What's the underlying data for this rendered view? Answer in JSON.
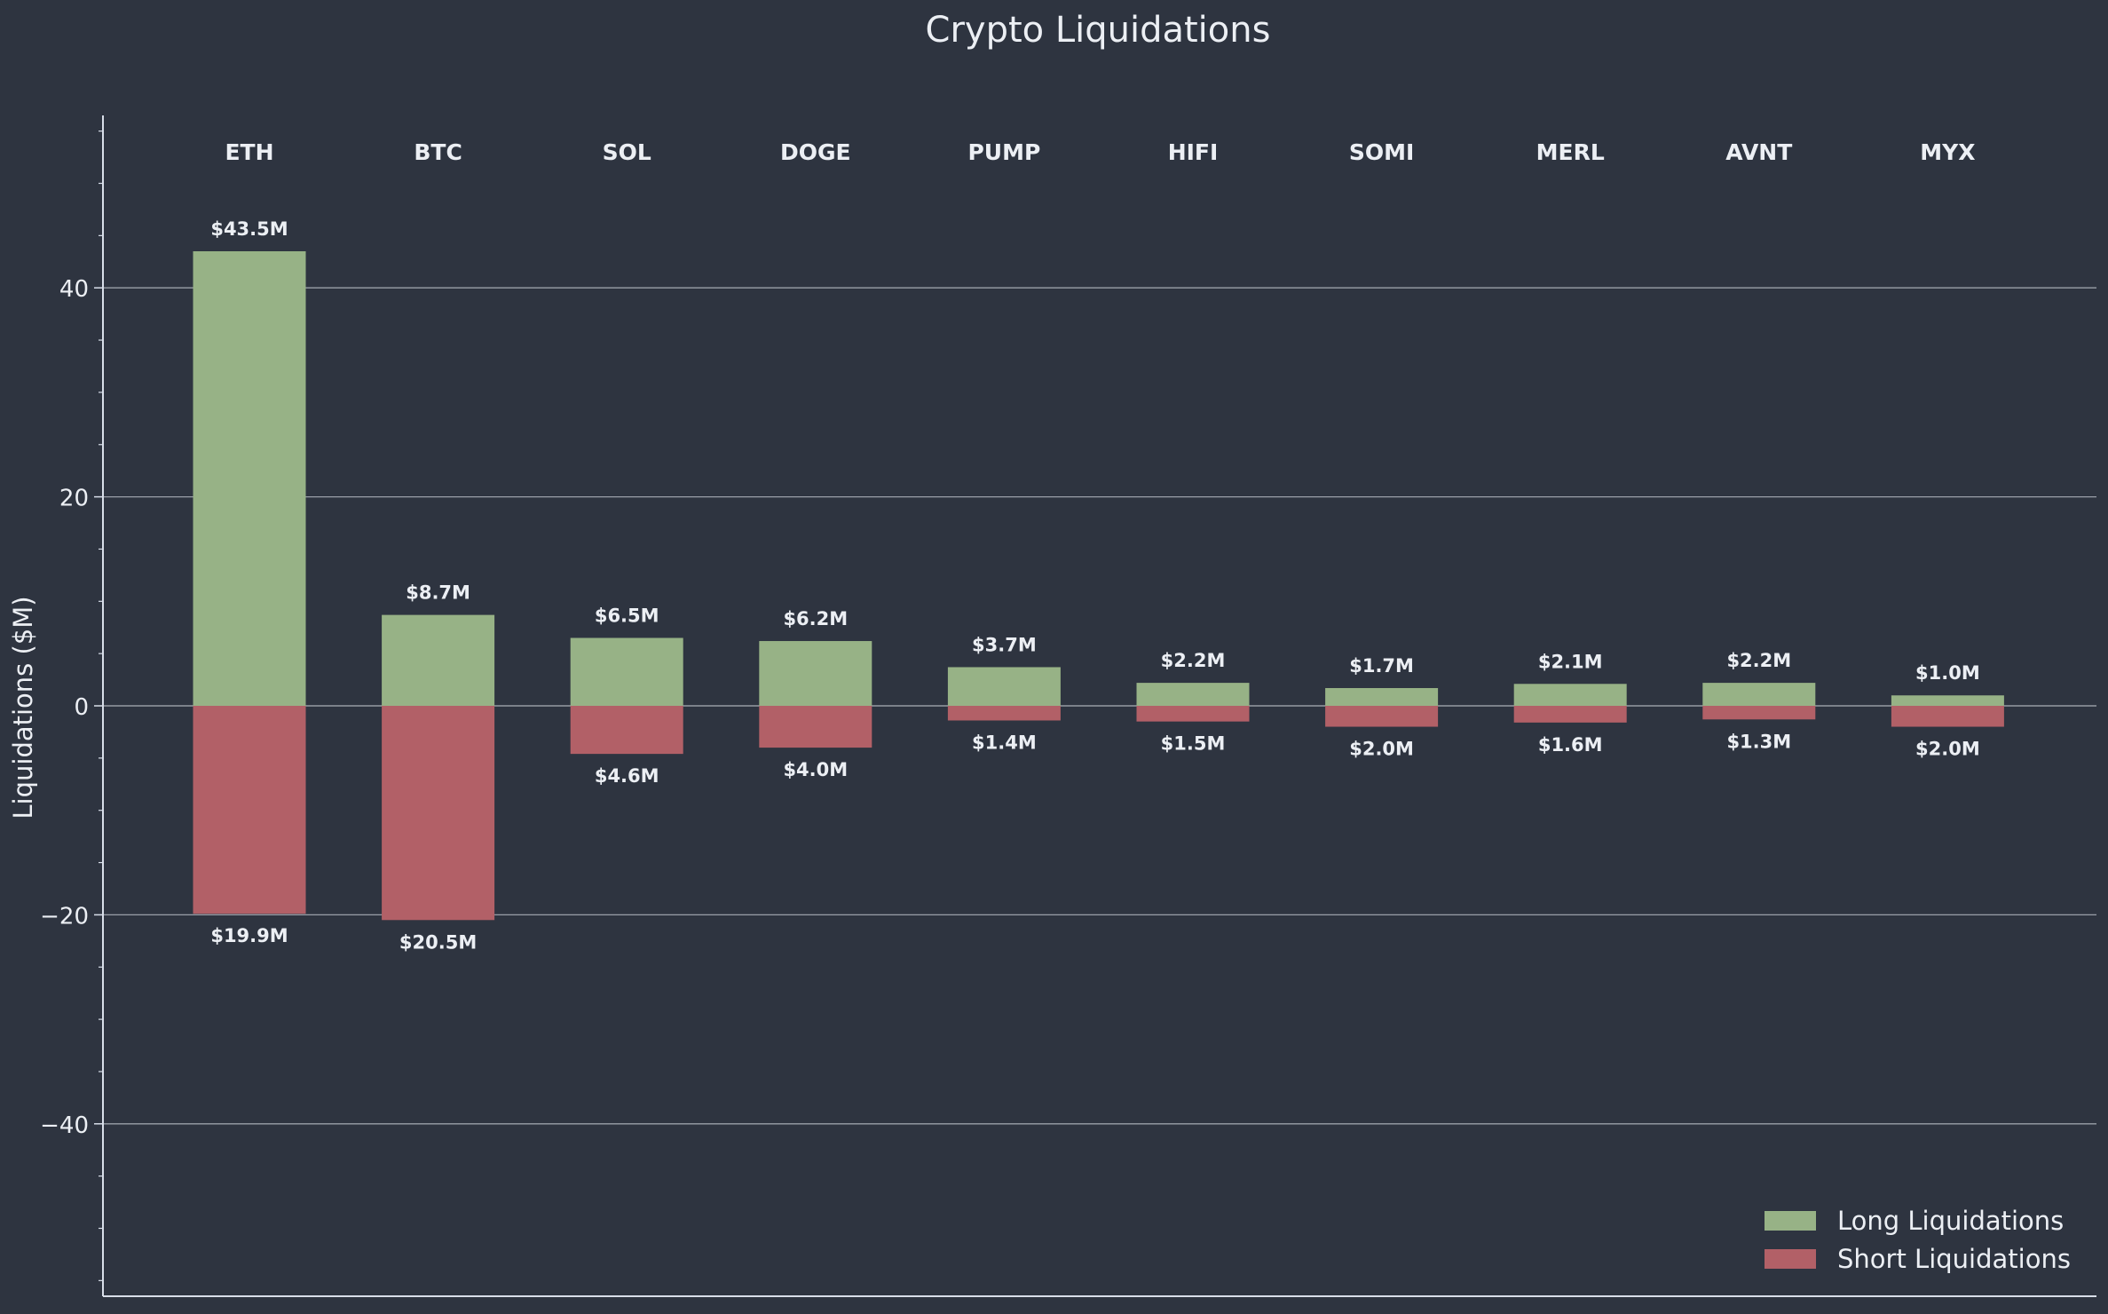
{
  "chart_data": {
    "type": "bar",
    "title": "Crypto Liquidations",
    "xlabel": "",
    "ylabel": "Liquidations ($M)",
    "ylim": [
      -56.5,
      56.5
    ],
    "yticks": [
      -40,
      -20,
      0,
      20,
      40
    ],
    "ytick_labels": [
      "−40",
      "−20",
      "0",
      "20",
      "40"
    ],
    "grid": true,
    "legend_position": "bottom-right",
    "categories": [
      "ETH",
      "BTC",
      "SOL",
      "DOGE",
      "PUMP",
      "HIFI",
      "SOMI",
      "MERL",
      "AVNT",
      "MYX"
    ],
    "series": [
      {
        "name": "Long Liquidations",
        "color": "#97b286",
        "values": [
          43.5,
          8.7,
          6.5,
          6.2,
          3.7,
          2.2,
          1.7,
          2.1,
          2.2,
          1.0
        ],
        "labels": [
          "$43.5M",
          "$8.7M",
          "$6.5M",
          "$6.2M",
          "$3.7M",
          "$2.2M",
          "$1.7M",
          "$2.1M",
          "$2.2M",
          "$1.0M"
        ]
      },
      {
        "name": "Short Liquidations",
        "color": "#b26067",
        "values": [
          -19.9,
          -20.5,
          -4.6,
          -4.0,
          -1.4,
          -1.5,
          -2.0,
          -1.6,
          -1.3,
          -2.0
        ],
        "labels": [
          "$19.9M",
          "$20.5M",
          "$4.6M",
          "$4.0M",
          "$1.4M",
          "$1.5M",
          "$2.0M",
          "$1.6M",
          "$1.3M",
          "$2.0M"
        ]
      }
    ],
    "colors": {
      "background": "#2e3440",
      "text": "#eceff4",
      "grid": "#9a9fa8",
      "axis": "#d8dee9"
    }
  }
}
